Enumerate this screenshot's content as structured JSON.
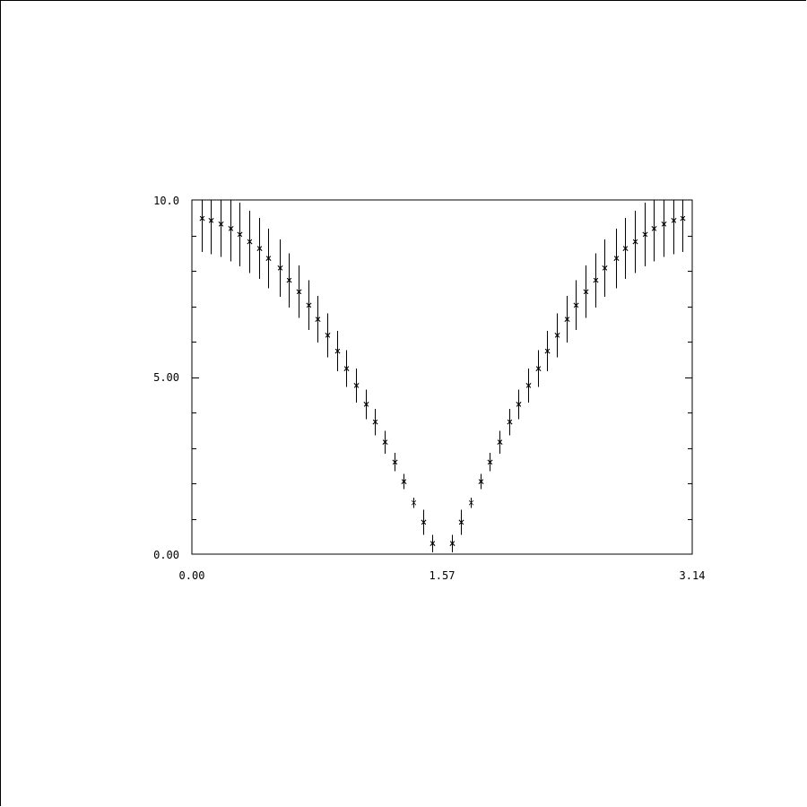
{
  "chart_data": {
    "type": "scatter",
    "title": "",
    "xlabel": "",
    "ylabel": "",
    "xlim": [
      0.0,
      3.14
    ],
    "ylim": [
      0.0,
      10.0
    ],
    "grid": false,
    "x_tick_labels": [
      "0.00",
      "1.57",
      "3.14"
    ],
    "x_tick_values": [
      0.0,
      1.57,
      3.14
    ],
    "y_tick_labels": [
      "0.00",
      "5.00",
      "10.0"
    ],
    "y_tick_values": [
      0.0,
      5.0,
      10.0
    ],
    "marker": "x",
    "series": [
      {
        "x": [
          0.06,
          0.12,
          0.18,
          0.24,
          0.3,
          0.36,
          0.42,
          0.48,
          0.55,
          0.61,
          0.67,
          0.73,
          0.79,
          0.85,
          0.91,
          0.97,
          1.03,
          1.09,
          1.15,
          1.21,
          1.27,
          1.33,
          1.39,
          1.45,
          1.51,
          1.63,
          1.69,
          1.75,
          1.81,
          1.87,
          1.93,
          1.99,
          2.05,
          2.11,
          2.17,
          2.23,
          2.29,
          2.35,
          2.41,
          2.47,
          2.53,
          2.59,
          2.66,
          2.72,
          2.78,
          2.84,
          2.9,
          2.96,
          3.02,
          3.08
        ],
        "values": [
          9.48,
          9.42,
          9.32,
          9.19,
          9.03,
          8.82,
          8.63,
          8.35,
          8.08,
          7.73,
          7.41,
          7.03,
          6.63,
          6.18,
          5.73,
          5.24,
          4.76,
          4.23,
          3.73,
          3.16,
          2.6,
          2.05,
          1.45,
          0.9,
          0.3,
          0.3,
          0.9,
          1.45,
          2.05,
          2.6,
          3.16,
          3.73,
          4.23,
          4.76,
          5.24,
          5.73,
          6.18,
          6.63,
          7.03,
          7.41,
          7.73,
          8.08,
          8.35,
          8.63,
          8.82,
          9.03,
          9.19,
          9.32,
          9.42,
          9.48
        ],
        "error": [
          0.95,
          0.95,
          0.93,
          0.92,
          0.9,
          0.88,
          0.86,
          0.84,
          0.81,
          0.77,
          0.74,
          0.7,
          0.66,
          0.62,
          0.57,
          0.52,
          0.48,
          0.42,
          0.37,
          0.32,
          0.26,
          0.21,
          0.15,
          0.35,
          0.25,
          0.25,
          0.35,
          0.15,
          0.21,
          0.26,
          0.32,
          0.37,
          0.42,
          0.48,
          0.52,
          0.57,
          0.62,
          0.66,
          0.7,
          0.74,
          0.77,
          0.81,
          0.84,
          0.86,
          0.88,
          0.9,
          0.92,
          0.93,
          0.95,
          0.95
        ]
      }
    ]
  }
}
